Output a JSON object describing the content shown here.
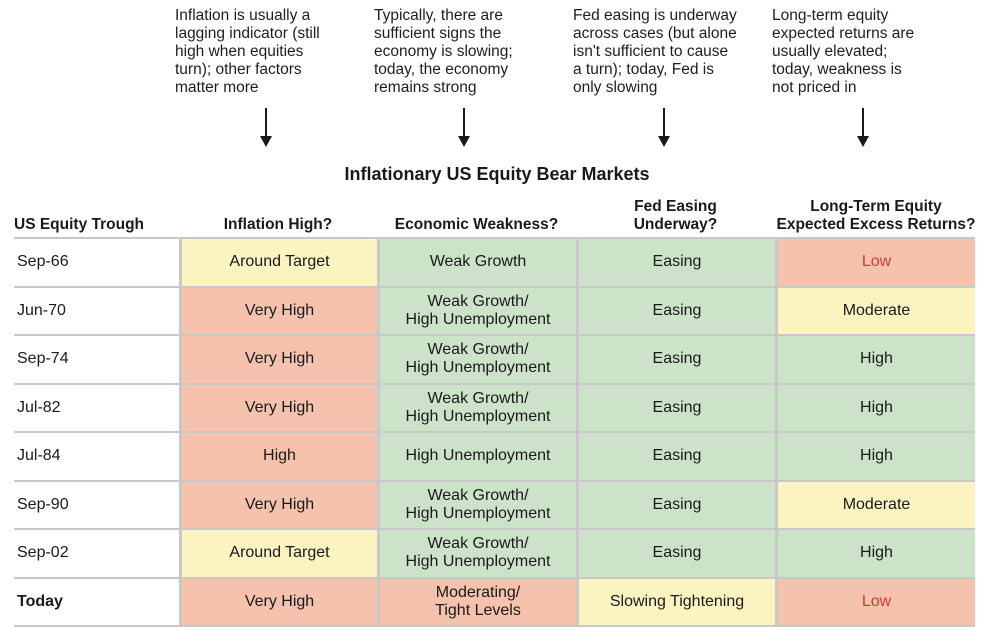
{
  "annotations": [
    {
      "text": "Inflation is usually a\nlagging indicator (still\nhigh when equities\nturn); other factors\nmatter more"
    },
    {
      "text": "Typically, there are\nsufficient signs the\neconomy is slowing;\ntoday, the economy\nremains strong"
    },
    {
      "text": "Fed easing is underway\nacross cases (but alone\nisn't sufficient to cause\na turn); today, Fed is\nonly slowing"
    },
    {
      "text": "Long-term equity\nexpected returns are\nusually elevated;\ntoday, weakness is\nnot priced in"
    }
  ],
  "table": {
    "title": "Inflationary US Equity Bear Markets",
    "headers": [
      "US Equity Trough",
      "Inflation High?",
      "Economic Weakness?",
      "Fed Easing\nUnderway?",
      "Long-Term Equity\nExpected Excess Returns?"
    ],
    "colors": {
      "red": "#f4c2ad",
      "yellow": "#fbf4c0",
      "green": "#cde3c9",
      "low_text": "#d63b2f"
    },
    "rows": [
      {
        "trough": "Sep-66",
        "cells": [
          {
            "text": "Around Target",
            "color": "yellow"
          },
          {
            "text": "Weak Growth",
            "color": "green"
          },
          {
            "text": "Easing",
            "color": "green"
          },
          {
            "text": "Low",
            "color": "red",
            "emphasis": true
          }
        ]
      },
      {
        "trough": "Jun-70",
        "cells": [
          {
            "text": "Very High",
            "color": "red"
          },
          {
            "text": "Weak Growth/\nHigh Unemployment",
            "color": "green"
          },
          {
            "text": "Easing",
            "color": "green"
          },
          {
            "text": "Moderate",
            "color": "yellow"
          }
        ]
      },
      {
        "trough": "Sep-74",
        "cells": [
          {
            "text": "Very High",
            "color": "red"
          },
          {
            "text": "Weak Growth/\nHigh Unemployment",
            "color": "green"
          },
          {
            "text": "Easing",
            "color": "green"
          },
          {
            "text": "High",
            "color": "green"
          }
        ]
      },
      {
        "trough": "Jul-82",
        "cells": [
          {
            "text": "Very High",
            "color": "red"
          },
          {
            "text": "Weak Growth/\nHigh Unemployment",
            "color": "green"
          },
          {
            "text": "Easing",
            "color": "green"
          },
          {
            "text": "High",
            "color": "green"
          }
        ]
      },
      {
        "trough": "Jul-84",
        "cells": [
          {
            "text": "High",
            "color": "red"
          },
          {
            "text": "High Unemployment",
            "color": "green"
          },
          {
            "text": "Easing",
            "color": "green"
          },
          {
            "text": "High",
            "color": "green"
          }
        ]
      },
      {
        "trough": "Sep-90",
        "cells": [
          {
            "text": "Very High",
            "color": "red"
          },
          {
            "text": "Weak Growth/\nHigh Unemployment",
            "color": "green"
          },
          {
            "text": "Easing",
            "color": "green"
          },
          {
            "text": "Moderate",
            "color": "yellow"
          }
        ]
      },
      {
        "trough": "Sep-02",
        "cells": [
          {
            "text": "Around Target",
            "color": "yellow"
          },
          {
            "text": "Weak Growth/\nHigh Unemployment",
            "color": "green"
          },
          {
            "text": "Easing",
            "color": "green"
          },
          {
            "text": "High",
            "color": "green"
          }
        ]
      },
      {
        "trough": "Today",
        "today": true,
        "cells": [
          {
            "text": "Very High",
            "color": "red"
          },
          {
            "text": "Moderating/\nTight Levels",
            "color": "red"
          },
          {
            "text": "Slowing Tightening",
            "color": "yellow"
          },
          {
            "text": "Low",
            "color": "red",
            "emphasis": true
          }
        ]
      }
    ]
  }
}
